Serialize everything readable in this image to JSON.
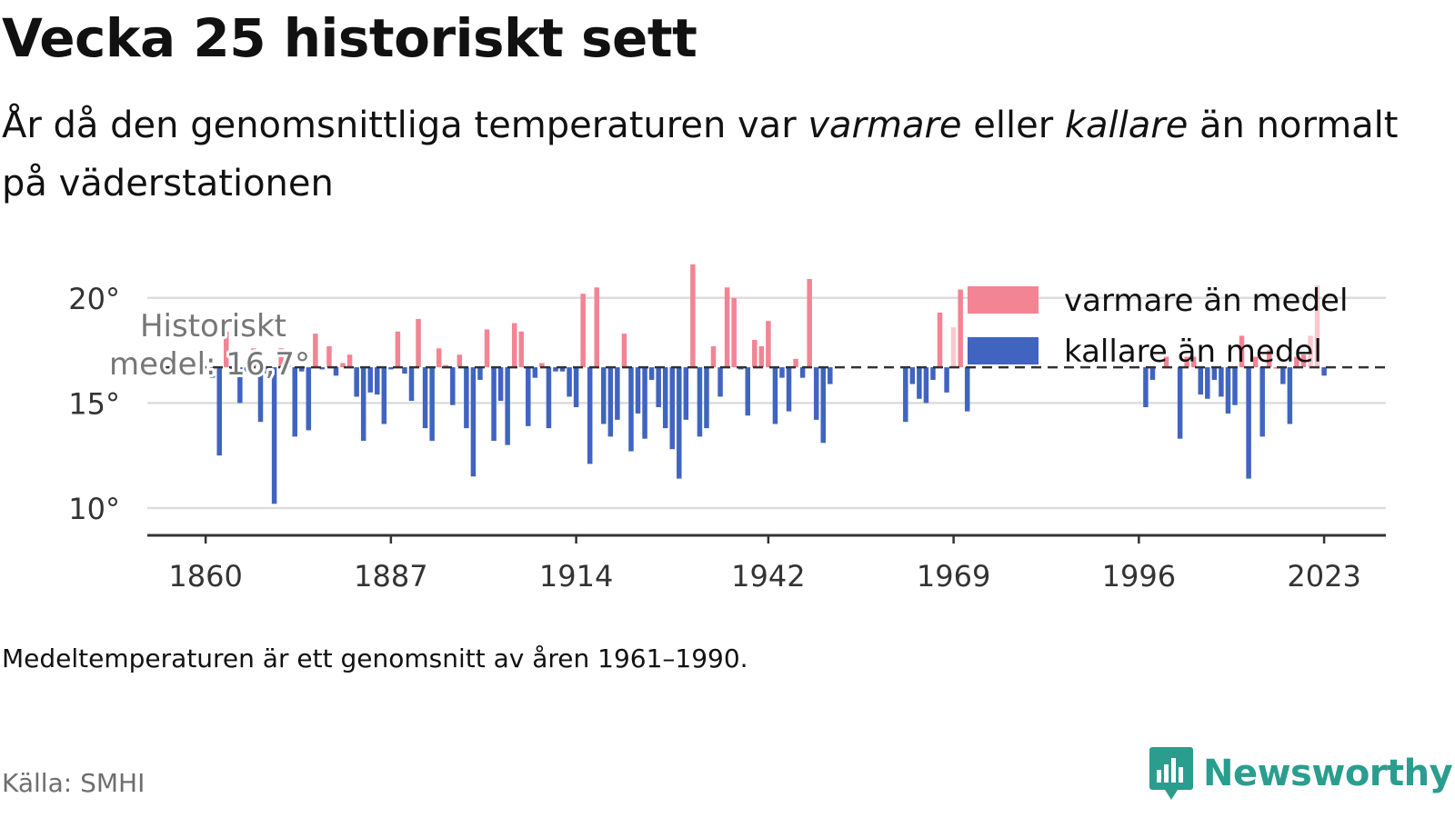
{
  "title": "Vecka 25 historiskt sett",
  "subtitle": {
    "part1": "År då den genomsnittliga temperaturen var ",
    "warm_word": "varmare",
    "part2": " eller ",
    "cold_word": "kallare",
    "part3": " än normalt på väderstationen"
  },
  "note": "Medeltemperaturen är ett genomsnitt av åren 1961–1990.",
  "source": "Källa: SMHI",
  "logo": {
    "text": "Newsworthy",
    "icon": "newsworthy-logo-icon",
    "color": "#2a9d8f"
  },
  "colors": {
    "warm": "#f28494",
    "cold": "#4064c0",
    "grid": "#dddddd",
    "axis": "#333333",
    "mean_line": "#333333",
    "annotation": "#777777"
  },
  "chart_data": {
    "type": "bar",
    "baseline": 16.7,
    "baseline_label": "Historiskt medel: 16,7°",
    "ylim": [
      8.7,
      22.5
    ],
    "xlim": [
      1851.5,
      2032
    ],
    "yticks": [
      10,
      15,
      20
    ],
    "ytick_labels": [
      "10°",
      "15°",
      "20°"
    ],
    "xticks": [
      1860,
      1887,
      1914,
      1942,
      1969,
      1996,
      2023
    ],
    "xtick_labels": [
      "1860",
      "1887",
      "1914",
      "1942",
      "1969",
      "1996",
      "2023"
    ],
    "grid": true,
    "legend_position": "top-right",
    "series": [
      {
        "name": "varmare än medel",
        "color": "#f28494"
      },
      {
        "name": "kallare än medel",
        "color": "#4064c0"
      }
    ],
    "faded_years": [
      1969,
      2021,
      2022,
      2023
    ],
    "x": [
      1861,
      1862,
      1863,
      1864,
      1865,
      1866,
      1867,
      1868,
      1869,
      1870,
      1871,
      1872,
      1873,
      1874,
      1875,
      1876,
      1877,
      1878,
      1879,
      1880,
      1881,
      1882,
      1883,
      1884,
      1885,
      1886,
      1887,
      1888,
      1889,
      1890,
      1891,
      1892,
      1893,
      1894,
      1895,
      1896,
      1897,
      1898,
      1899,
      1900,
      1901,
      1902,
      1903,
      1904,
      1905,
      1906,
      1907,
      1908,
      1909,
      1910,
      1911,
      1912,
      1913,
      1914,
      1915,
      1916,
      1917,
      1918,
      1919,
      1920,
      1921,
      1922,
      1923,
      1924,
      1925,
      1926,
      1927,
      1928,
      1929,
      1930,
      1931,
      1932,
      1933,
      1934,
      1935,
      1936,
      1937,
      1938,
      1939,
      1940,
      1941,
      1942,
      1943,
      1944,
      1945,
      1946,
      1947,
      1948,
      1949,
      1950,
      1951,
      1962,
      1963,
      1964,
      1965,
      1966,
      1967,
      1968,
      1969,
      1970,
      1971,
      1997,
      1998,
      2000,
      2002,
      2003,
      2004,
      2005,
      2006,
      2007,
      2008,
      2009,
      2010,
      2011,
      2012,
      2013,
      2014,
      2015,
      2016,
      2017,
      2018,
      2019,
      2020,
      2021,
      2022,
      2023
    ],
    "values": [
      16.2,
      12.5,
      18.4,
      16.5,
      15.0,
      16.5,
      17.6,
      14.1,
      16.4,
      10.2,
      17.6,
      17.2,
      13.4,
      16.5,
      13.7,
      18.3,
      16.6,
      17.7,
      16.3,
      16.9,
      17.3,
      15.3,
      13.2,
      15.5,
      15.4,
      14.0,
      16.6,
      18.4,
      16.4,
      15.1,
      19.0,
      13.8,
      13.2,
      17.6,
      16.8,
      14.9,
      17.3,
      13.8,
      11.5,
      16.1,
      18.5,
      13.2,
      15.1,
      13.0,
      18.8,
      18.4,
      13.9,
      16.2,
      16.9,
      13.8,
      16.5,
      16.5,
      15.3,
      14.8,
      20.2,
      12.1,
      20.5,
      14.0,
      13.4,
      14.2,
      18.3,
      12.7,
      14.5,
      13.3,
      16.1,
      14.8,
      13.8,
      12.8,
      11.4,
      14.2,
      21.6,
      13.4,
      13.8,
      17.7,
      15.3,
      20.5,
      20.0,
      16.6,
      14.4,
      18.0,
      17.7,
      18.9,
      14.0,
      16.2,
      14.6,
      17.1,
      16.2,
      20.9,
      14.2,
      13.1,
      15.9,
      14.1,
      15.9,
      15.2,
      15.0,
      16.1,
      19.3,
      15.5,
      18.6,
      20.4,
      14.6,
      14.8,
      16.1,
      17.2,
      13.3,
      17.2,
      17.2,
      15.4,
      15.2,
      16.1,
      15.3,
      14.5,
      14.9,
      18.2,
      11.4,
      17.2,
      13.4,
      17.5,
      16.7,
      15.9,
      14.0,
      17.2,
      17.3,
      18.2,
      20.6,
      16.3
    ]
  }
}
